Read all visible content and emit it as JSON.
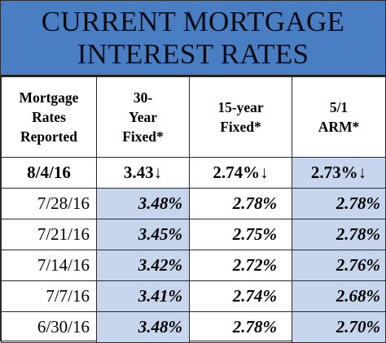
{
  "title": {
    "line1": "CURRENT MORTGAGE",
    "line2": "INTEREST RATES"
  },
  "headers": {
    "c1": [
      "Mortgage",
      "Rates",
      "Reported"
    ],
    "c2": [
      "30-",
      "Year",
      "Fixed*"
    ],
    "c3": [
      "15-year",
      "Fixed*"
    ],
    "c4": [
      "5/1",
      "ARM*"
    ]
  },
  "latest": {
    "date": "8/4/16",
    "fixed30": "3.43",
    "fixed15": "2.74%",
    "arm51": "2.73%",
    "arrow": "↓"
  },
  "rows": [
    {
      "date": "7/28/16",
      "fixed30": "3.48%",
      "fixed15": "2.78%",
      "arm51": "2.78%"
    },
    {
      "date": "7/21/16",
      "fixed30": "3.45%",
      "fixed15": "2.75%",
      "arm51": "2.78%"
    },
    {
      "date": "7/14/16",
      "fixed30": "3.42%",
      "fixed15": "2.72%",
      "arm51": "2.76%"
    },
    {
      "date": "7/7/16",
      "fixed30": "3.41%",
      "fixed15": "2.74%",
      "arm51": "2.68%"
    },
    {
      "date": "6/30/16",
      "fixed30": "3.48%",
      "fixed15": "2.78%",
      "arm51": "2.70%"
    }
  ]
}
